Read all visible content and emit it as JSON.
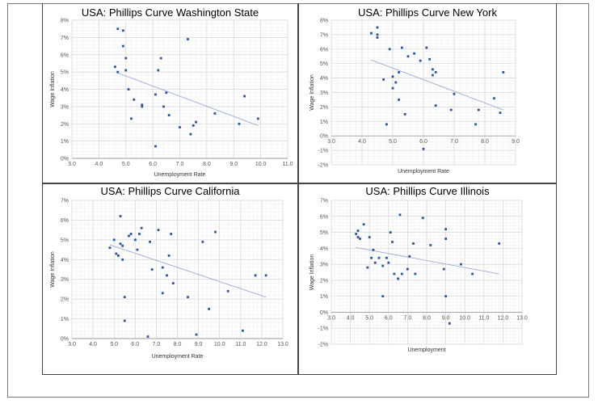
{
  "chart_data": [
    {
      "type": "scatter",
      "title": "USA: Phillips Curve Washington State",
      "xlabel": "Unemployment Rate",
      "ylabel": "Wage Inflation",
      "xlim": [
        3.0,
        11.0
      ],
      "ylim": [
        0,
        8
      ],
      "x_ticks": [
        "3.0",
        "4.0",
        "5.0",
        "6.0",
        "7.0",
        "8.0",
        "9.0",
        "10.0",
        "11.0"
      ],
      "y_ticks": [
        "0%",
        "1%",
        "2%",
        "3%",
        "4%",
        "5%",
        "6%",
        "7%",
        "8%"
      ],
      "grid": true,
      "trendline": [
        [
          4.7,
          4.95
        ],
        [
          9.9,
          1.9
        ]
      ],
      "points": [
        [
          4.7,
          7.5
        ],
        [
          4.9,
          7.4
        ],
        [
          4.9,
          6.5
        ],
        [
          5.0,
          5.8
        ],
        [
          4.6,
          5.3
        ],
        [
          4.7,
          5.0
        ],
        [
          5.0,
          5.1
        ],
        [
          5.1,
          4.0
        ],
        [
          5.3,
          3.4
        ],
        [
          5.2,
          2.3
        ],
        [
          5.6,
          3.1
        ],
        [
          5.6,
          3.0
        ],
        [
          6.1,
          3.7
        ],
        [
          6.2,
          5.1
        ],
        [
          6.3,
          5.8
        ],
        [
          6.4,
          3.0
        ],
        [
          6.5,
          3.8
        ],
        [
          6.6,
          2.5
        ],
        [
          6.1,
          0.7
        ],
        [
          7.0,
          1.8
        ],
        [
          7.3,
          6.9
        ],
        [
          7.4,
          1.4
        ],
        [
          7.5,
          1.9
        ],
        [
          7.6,
          2.1
        ],
        [
          8.3,
          2.6
        ],
        [
          9.2,
          2.0
        ],
        [
          9.4,
          3.6
        ],
        [
          9.9,
          2.3
        ]
      ]
    },
    {
      "type": "scatter",
      "title": "USA: Phillips Curve New York",
      "xlabel": "Unemployment Rate",
      "ylabel": "Wage Inflation",
      "xlim": [
        3.0,
        9.0
      ],
      "ylim": [
        -2,
        8
      ],
      "x_ticks": [
        "3.0",
        "4.0",
        "5.0",
        "6.0",
        "7.0",
        "8.0",
        "9.0"
      ],
      "y_ticks": [
        "-2%",
        "-1%",
        "0%",
        "1%",
        "2%",
        "3%",
        "4%",
        "5%",
        "6%",
        "7%",
        "8%"
      ],
      "grid": true,
      "trendline": [
        [
          4.3,
          5.25
        ],
        [
          8.6,
          1.8
        ]
      ],
      "points": [
        [
          4.3,
          7.1
        ],
        [
          4.5,
          7.5
        ],
        [
          4.5,
          7.0
        ],
        [
          4.5,
          6.8
        ],
        [
          4.7,
          3.9
        ],
        [
          4.8,
          0.8
        ],
        [
          4.9,
          6.0
        ],
        [
          5.0,
          4.1
        ],
        [
          5.0,
          3.3
        ],
        [
          5.1,
          3.7
        ],
        [
          5.2,
          2.5
        ],
        [
          5.2,
          4.4
        ],
        [
          5.3,
          6.1
        ],
        [
          5.4,
          1.5
        ],
        [
          5.5,
          5.5
        ],
        [
          5.7,
          5.7
        ],
        [
          5.9,
          5.2
        ],
        [
          6.0,
          -0.9
        ],
        [
          6.1,
          6.1
        ],
        [
          6.2,
          5.3
        ],
        [
          6.3,
          4.6
        ],
        [
          6.3,
          4.2
        ],
        [
          6.4,
          4.4
        ],
        [
          6.4,
          2.1
        ],
        [
          6.9,
          1.8
        ],
        [
          7.0,
          2.9
        ],
        [
          7.7,
          0.8
        ],
        [
          7.8,
          1.8
        ],
        [
          8.3,
          2.6
        ],
        [
          8.5,
          1.6
        ],
        [
          8.6,
          4.4
        ]
      ]
    },
    {
      "type": "scatter",
      "title": "USA: Phillips Curve California",
      "xlabel": "Unemployment Rate",
      "ylabel": "Wage Inflation",
      "xlim": [
        3.0,
        13.0
      ],
      "ylim": [
        0,
        7
      ],
      "x_ticks": [
        "3.0",
        "4.0",
        "5.0",
        "6.0",
        "7.0",
        "8.0",
        "9.0",
        "10.0",
        "11.0",
        "12.0",
        "13.0"
      ],
      "y_ticks": [
        "0%",
        "1%",
        "2%",
        "3%",
        "4%",
        "5%",
        "6%",
        "7%"
      ],
      "grid": true,
      "trendline": [
        [
          4.8,
          4.75
        ],
        [
          12.2,
          2.1
        ]
      ],
      "points": [
        [
          4.8,
          4.6
        ],
        [
          5.0,
          5.0
        ],
        [
          5.1,
          4.3
        ],
        [
          5.2,
          4.2
        ],
        [
          5.3,
          6.2
        ],
        [
          5.3,
          4.8
        ],
        [
          5.4,
          4.7
        ],
        [
          5.4,
          4.0
        ],
        [
          5.5,
          2.1
        ],
        [
          5.5,
          0.9
        ],
        [
          5.7,
          5.2
        ],
        [
          5.8,
          5.3
        ],
        [
          6.0,
          5.0
        ],
        [
          6.1,
          4.5
        ],
        [
          6.2,
          5.3
        ],
        [
          6.3,
          5.6
        ],
        [
          6.6,
          0.1
        ],
        [
          6.7,
          4.9
        ],
        [
          6.8,
          3.5
        ],
        [
          7.1,
          5.5
        ],
        [
          7.3,
          3.6
        ],
        [
          7.3,
          2.3
        ],
        [
          7.5,
          3.2
        ],
        [
          7.6,
          4.2
        ],
        [
          7.7,
          5.3
        ],
        [
          7.8,
          2.8
        ],
        [
          8.5,
          2.1
        ],
        [
          8.9,
          0.2
        ],
        [
          9.2,
          4.9
        ],
        [
          9.5,
          1.5
        ],
        [
          9.8,
          5.4
        ],
        [
          10.4,
          2.4
        ],
        [
          11.1,
          0.4
        ],
        [
          11.7,
          3.2
        ],
        [
          12.2,
          3.2
        ]
      ]
    },
    {
      "type": "scatter",
      "title": "USA: Phillips Curve Illinois",
      "xlabel": "Unemployment",
      "ylabel": "Wage Inflation",
      "xlim": [
        3.0,
        13.0
      ],
      "ylim": [
        -2,
        7
      ],
      "x_ticks": [
        "3.0",
        "4.0",
        "5.0",
        "6.0",
        "7.0",
        "8.0",
        "9.0",
        "10.0",
        "11.0",
        "12.0",
        "13.0"
      ],
      "y_ticks": [
        "-2%",
        "-1%",
        "0%",
        "1%",
        "2%",
        "3%",
        "4%",
        "5%",
        "6%",
        "7%"
      ],
      "grid": true,
      "trendline": [
        [
          4.3,
          4.05
        ],
        [
          11.8,
          2.4
        ]
      ],
      "points": [
        [
          4.3,
          4.9
        ],
        [
          4.4,
          5.1
        ],
        [
          4.4,
          4.7
        ],
        [
          4.5,
          4.6
        ],
        [
          4.7,
          5.5
        ],
        [
          4.9,
          2.8
        ],
        [
          5.0,
          4.7
        ],
        [
          5.1,
          3.4
        ],
        [
          5.2,
          3.9
        ],
        [
          5.3,
          3.1
        ],
        [
          5.5,
          3.4
        ],
        [
          5.7,
          1.0
        ],
        [
          5.7,
          2.9
        ],
        [
          5.9,
          3.4
        ],
        [
          6.0,
          3.1
        ],
        [
          6.1,
          5.0
        ],
        [
          6.2,
          4.4
        ],
        [
          6.3,
          2.4
        ],
        [
          6.5,
          2.1
        ],
        [
          6.6,
          6.1
        ],
        [
          6.7,
          2.4
        ],
        [
          7.0,
          2.7
        ],
        [
          7.1,
          3.5
        ],
        [
          7.3,
          4.3
        ],
        [
          7.4,
          2.4
        ],
        [
          7.8,
          5.9
        ],
        [
          8.2,
          4.2
        ],
        [
          8.9,
          2.7
        ],
        [
          9.0,
          5.2
        ],
        [
          9.0,
          4.6
        ],
        [
          9.0,
          1.0
        ],
        [
          9.2,
          -0.7
        ],
        [
          9.8,
          3.0
        ],
        [
          10.4,
          2.4
        ],
        [
          11.8,
          4.3
        ]
      ]
    }
  ]
}
